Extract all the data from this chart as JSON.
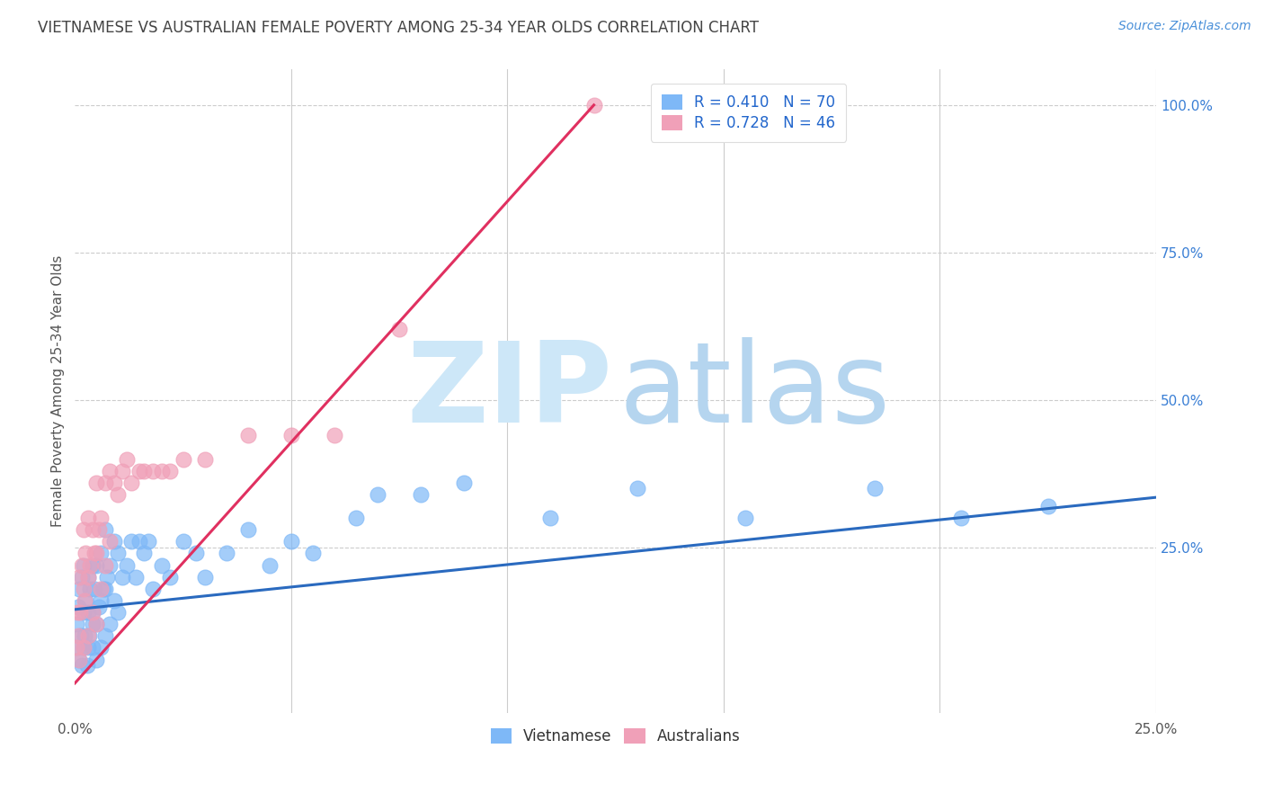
{
  "title": "VIETNAMESE VS AUSTRALIAN FEMALE POVERTY AMONG 25-34 YEAR OLDS CORRELATION CHART",
  "source": "Source: ZipAtlas.com",
  "ylabel": "Female Poverty Among 25-34 Year Olds",
  "xlim": [
    0.0,
    0.25
  ],
  "ylim": [
    -0.03,
    1.06
  ],
  "title_color": "#444444",
  "title_fontsize": 12,
  "source_fontsize": 10,
  "background_color": "#ffffff",
  "grid_color": "#cccccc",
  "viet_color": "#7eb8f7",
  "aus_color": "#f0a0b8",
  "viet_line_color": "#2a6abf",
  "aus_line_color": "#e03060",
  "viet_R": 0.41,
  "viet_N": 70,
  "aus_R": 0.728,
  "aus_N": 46,
  "legend_color": "#2266cc",
  "viet_line_x": [
    0.0,
    0.25
  ],
  "viet_line_y": [
    0.145,
    0.335
  ],
  "aus_line_x": [
    0.0,
    0.12
  ],
  "aus_line_y": [
    0.02,
    1.0
  ],
  "viet_x": [
    0.0003,
    0.0005,
    0.0008,
    0.001,
    0.001,
    0.0013,
    0.0015,
    0.0015,
    0.002,
    0.002,
    0.002,
    0.0022,
    0.0025,
    0.0028,
    0.003,
    0.003,
    0.003,
    0.0032,
    0.0035,
    0.004,
    0.004,
    0.004,
    0.0042,
    0.0045,
    0.005,
    0.005,
    0.005,
    0.0055,
    0.006,
    0.006,
    0.006,
    0.0065,
    0.007,
    0.007,
    0.007,
    0.0075,
    0.008,
    0.008,
    0.009,
    0.009,
    0.01,
    0.01,
    0.011,
    0.012,
    0.013,
    0.014,
    0.015,
    0.016,
    0.017,
    0.018,
    0.02,
    0.022,
    0.025,
    0.028,
    0.03,
    0.035,
    0.04,
    0.045,
    0.05,
    0.055,
    0.065,
    0.07,
    0.08,
    0.09,
    0.11,
    0.13,
    0.155,
    0.185,
    0.205,
    0.225
  ],
  "viet_y": [
    0.12,
    0.08,
    0.15,
    0.06,
    0.18,
    0.1,
    0.05,
    0.2,
    0.08,
    0.14,
    0.22,
    0.1,
    0.16,
    0.05,
    0.08,
    0.14,
    0.2,
    0.1,
    0.18,
    0.08,
    0.14,
    0.22,
    0.12,
    0.18,
    0.06,
    0.12,
    0.22,
    0.15,
    0.08,
    0.16,
    0.24,
    0.18,
    0.1,
    0.18,
    0.28,
    0.2,
    0.12,
    0.22,
    0.16,
    0.26,
    0.14,
    0.24,
    0.2,
    0.22,
    0.26,
    0.2,
    0.26,
    0.24,
    0.26,
    0.18,
    0.22,
    0.2,
    0.26,
    0.24,
    0.2,
    0.24,
    0.28,
    0.22,
    0.26,
    0.24,
    0.3,
    0.34,
    0.34,
    0.36,
    0.3,
    0.35,
    0.3,
    0.35,
    0.3,
    0.32
  ],
  "aus_x": [
    0.0003,
    0.0005,
    0.0008,
    0.001,
    0.001,
    0.0012,
    0.0015,
    0.002,
    0.002,
    0.002,
    0.0022,
    0.0025,
    0.003,
    0.003,
    0.003,
    0.0035,
    0.004,
    0.004,
    0.0045,
    0.005,
    0.005,
    0.005,
    0.0055,
    0.006,
    0.006,
    0.007,
    0.007,
    0.008,
    0.008,
    0.009,
    0.01,
    0.011,
    0.012,
    0.013,
    0.015,
    0.016,
    0.018,
    0.02,
    0.022,
    0.025,
    0.03,
    0.04,
    0.05,
    0.06,
    0.075,
    0.12
  ],
  "aus_y": [
    0.08,
    0.14,
    0.1,
    0.06,
    0.2,
    0.14,
    0.22,
    0.08,
    0.18,
    0.28,
    0.16,
    0.24,
    0.1,
    0.2,
    0.3,
    0.22,
    0.14,
    0.28,
    0.24,
    0.12,
    0.24,
    0.36,
    0.28,
    0.18,
    0.3,
    0.22,
    0.36,
    0.26,
    0.38,
    0.36,
    0.34,
    0.38,
    0.4,
    0.36,
    0.38,
    0.38,
    0.38,
    0.38,
    0.38,
    0.4,
    0.4,
    0.44,
    0.44,
    0.44,
    0.62,
    1.0
  ]
}
